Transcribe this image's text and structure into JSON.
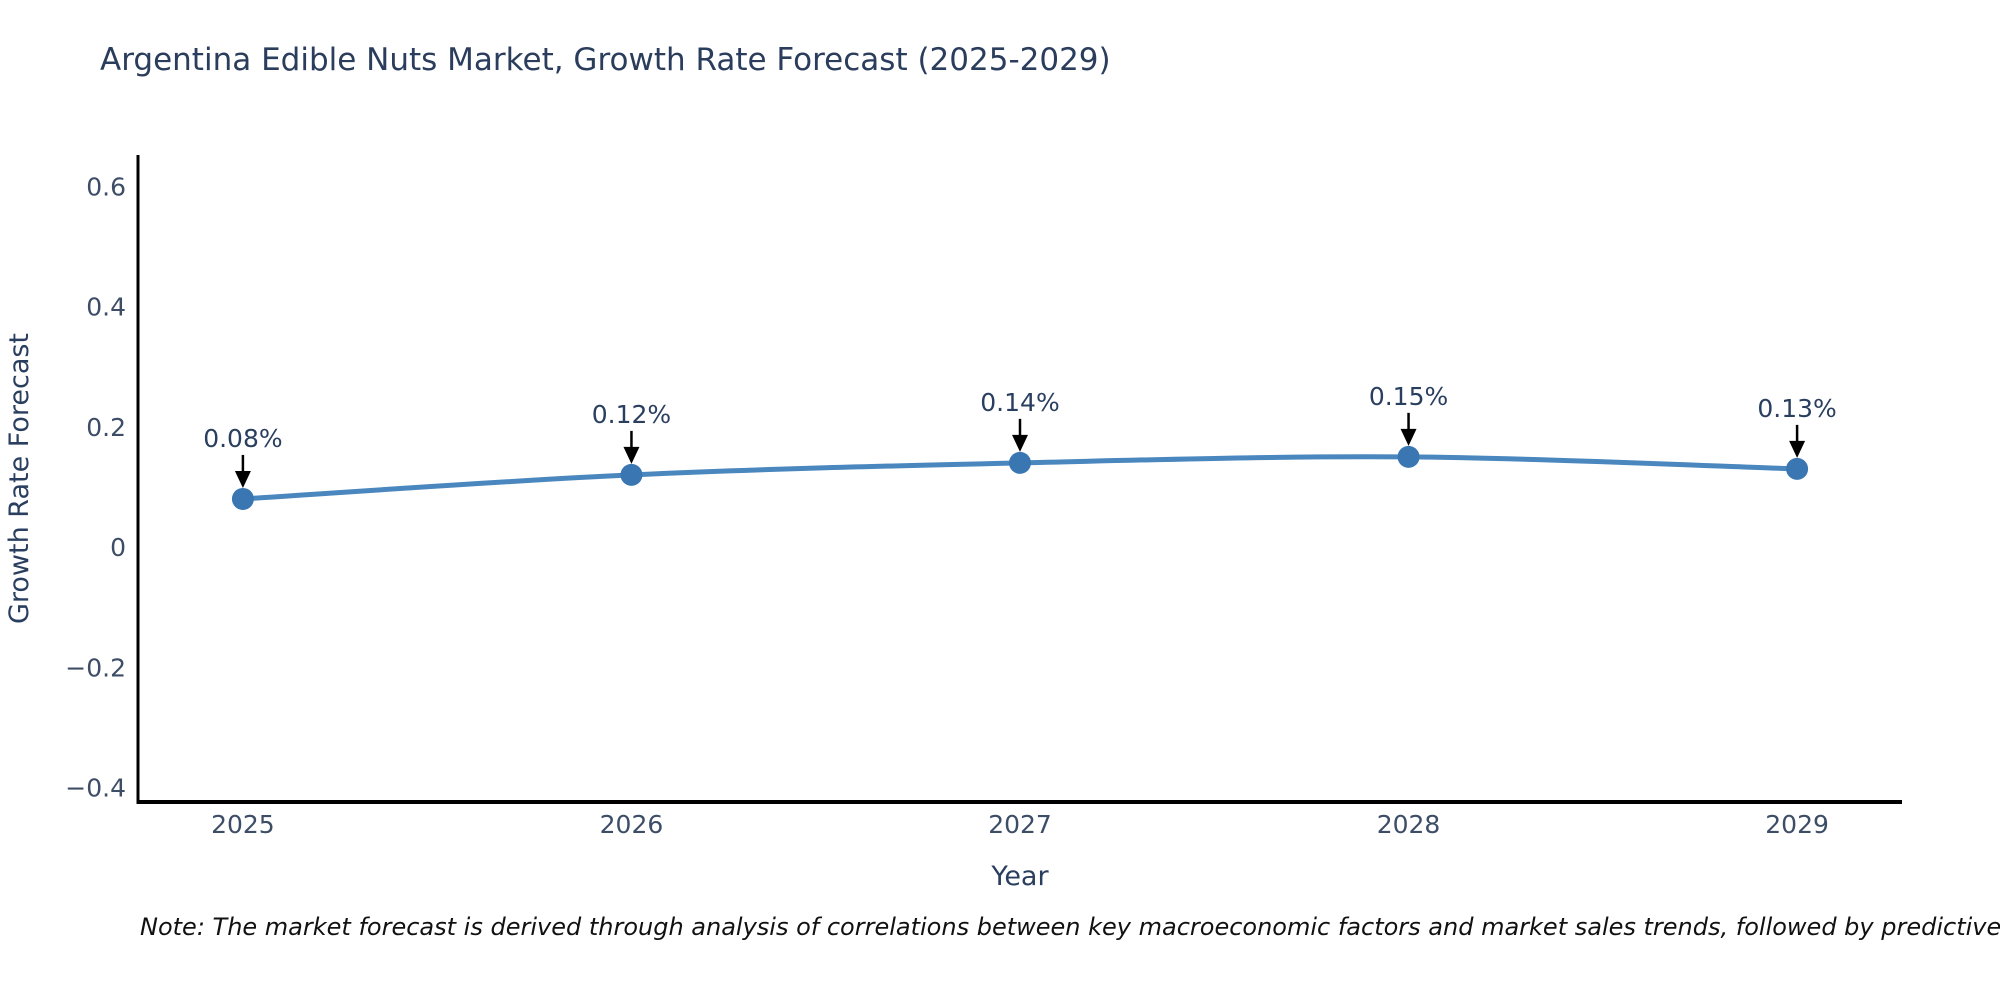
{
  "note": "Note: The market forecast is derived through analysis of correlations between key macroeconomic factors and market sales trends, followed by predictive modeling to project future sales",
  "chart_data": {
    "type": "line",
    "title": "Argentina Edible Nuts Market, Growth Rate Forecast (2025-2029)",
    "xlabel": "Year",
    "ylabel": "Growth Rate Forecast",
    "x": [
      2025,
      2026,
      2027,
      2028,
      2029
    ],
    "values": [
      0.08,
      0.12,
      0.14,
      0.15,
      0.13
    ],
    "point_labels": [
      "0.08%",
      "0.12%",
      "0.14%",
      "0.15%",
      "0.13%"
    ],
    "xticks": [
      {
        "value": 2025,
        "label": "2025"
      },
      {
        "value": 2026,
        "label": "2026"
      },
      {
        "value": 2027,
        "label": "2027"
      },
      {
        "value": 2028,
        "label": "2028"
      },
      {
        "value": 2029,
        "label": "2029"
      }
    ],
    "yticks": [
      {
        "value": -0.4,
        "label": "−0.4"
      },
      {
        "value": -0.2,
        "label": "−0.2"
      },
      {
        "value": 0,
        "label": "0"
      },
      {
        "value": 0.2,
        "label": "0.2"
      },
      {
        "value": 0.4,
        "label": "0.4"
      },
      {
        "value": 0.6,
        "label": "0.6"
      }
    ],
    "xlim": [
      2024.73,
      2029.27
    ],
    "ylim": [
      -0.424,
      0.652
    ],
    "grid": false,
    "legend": false,
    "line_smoothing": "spline",
    "colors": {
      "line": "#4a87be",
      "marker": "#3a76b2",
      "axis": "#000000",
      "title_text": "#2b3d5c",
      "axis_title_text": "#2a3f5f",
      "tick_text": "#3d4d66",
      "annotation_text": "#2a3f5f",
      "annotation_arrow": "#000000"
    }
  }
}
